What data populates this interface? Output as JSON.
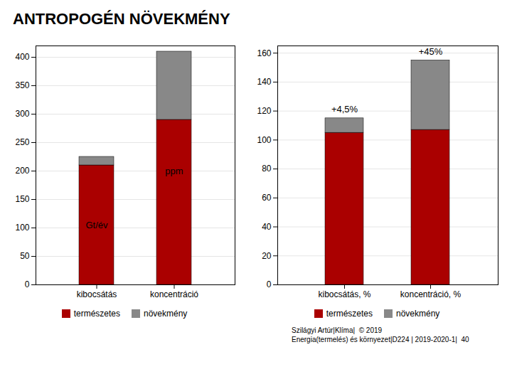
{
  "title": "ANTROPOGÉN NÖVEKMÉNY",
  "caption": [
    "Szilágyi Artúr|Klíma|  © 2019",
    "Energia(termelés) és környezet|D224 | 2019-2020-1|  40"
  ],
  "chart_data": [
    {
      "type": "bar",
      "stacked": true,
      "grid": true,
      "legend": "bottom",
      "categories": [
        "kibocsátás",
        "koncentráció"
      ],
      "series": [
        {
          "name": "természetes",
          "color": "#AA0000",
          "values": [
            210,
            290
          ]
        },
        {
          "name": "növekmény",
          "color": "#888888",
          "values": [
            15,
            120
          ]
        }
      ],
      "ylim": [
        0,
        420
      ],
      "yticks": [
        0,
        50,
        100,
        150,
        200,
        250,
        300,
        350,
        400
      ],
      "annotations": [
        {
          "category": "kibocsátás",
          "y": 105,
          "text": "Gt/év"
        },
        {
          "category": "koncentráció",
          "y": 200,
          "text": "ppm"
        }
      ]
    },
    {
      "type": "bar",
      "stacked": true,
      "grid": true,
      "legend": "bottom",
      "categories": [
        "kibocsátás, %",
        "koncentráció, %"
      ],
      "series": [
        {
          "name": "természetes",
          "color": "#AA0000",
          "values": [
            105,
            107
          ]
        },
        {
          "name": "növekmény",
          "color": "#888888",
          "values": [
            10,
            48
          ]
        }
      ],
      "ylim": [
        0,
        165
      ],
      "yticks": [
        0,
        20,
        40,
        60,
        80,
        100,
        120,
        140,
        160
      ],
      "annotations": [
        {
          "category": "kibocsátás, %",
          "text": "+4,5%"
        },
        {
          "category": "koncentráció, %",
          "text": "+45%"
        }
      ]
    }
  ]
}
